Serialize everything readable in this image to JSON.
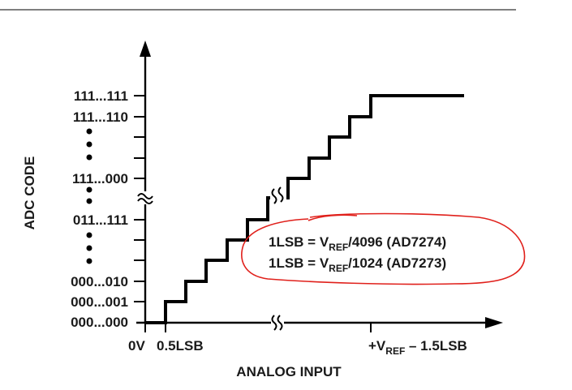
{
  "diagram": {
    "y_axis_title": "ADC CODE",
    "x_axis_title": "ANALOG INPUT",
    "y_labels": [
      "111...111",
      "111...110",
      "111...000",
      "011...111",
      "000...010",
      "000...001",
      "000...000"
    ],
    "x_labels": {
      "origin": "0V",
      "first": "0.5LSB",
      "last_prefix": "+V",
      "last_sub": "REF",
      "last_suffix": " – 1.5LSB"
    },
    "notes": [
      {
        "prefix": "1LSB = V",
        "sub": "REF",
        "suffix": "/4096 (AD7274)"
      },
      {
        "prefix": "1LSB = V",
        "sub": "REF",
        "suffix": "/1024 (AD7273)"
      }
    ],
    "colors": {
      "ink": "#000000",
      "annotation": "#e0201b",
      "rule": "#333333"
    }
  }
}
